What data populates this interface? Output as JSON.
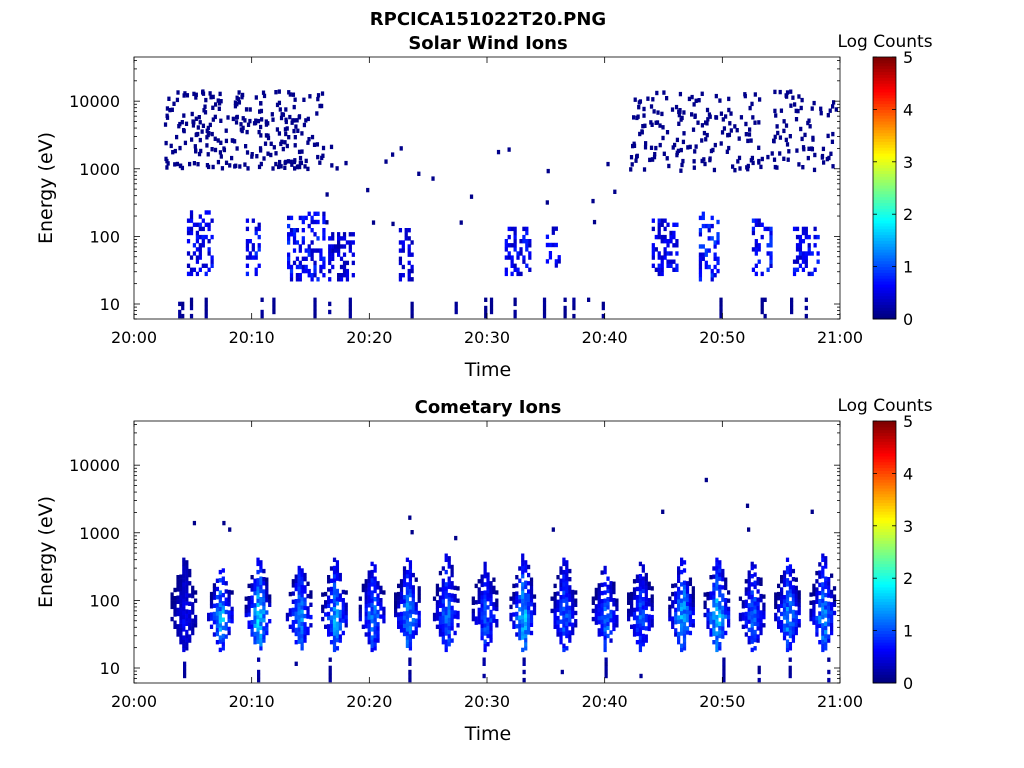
{
  "figure_title": "RPCICA151022T20.PNG",
  "chart_data": [
    {
      "type": "heatmap",
      "title": "Solar Wind Ions",
      "xlabel": "Time",
      "ylabel": "Energy (eV)",
      "x_ticks": [
        "20:00",
        "20:10",
        "20:20",
        "20:30",
        "20:40",
        "20:50",
        "21:00"
      ],
      "x_range": [
        "20:00",
        "21:00"
      ],
      "y_ticks": [
        "10",
        "100",
        "1000",
        "10000"
      ],
      "y_scale": "log",
      "y_range": [
        6,
        45000
      ],
      "colorbar": {
        "label": "Log Counts",
        "ticks": [
          "0",
          "1",
          "2",
          "3",
          "4",
          "5"
        ],
        "range": [
          0,
          5
        ],
        "colormap": "jet"
      },
      "scattered_energy_range": [
        1000,
        15000
      ],
      "clusters": [
        {
          "start": 4.5,
          "end": 6.5,
          "emin": 30,
          "emax": 250,
          "peak": 0.8
        },
        {
          "start": 9.5,
          "end": 10.5,
          "emin": 30,
          "emax": 200,
          "peak": 0.9
        },
        {
          "start": 13.0,
          "end": 16.0,
          "emin": 25,
          "emax": 250,
          "peak": 0.9
        },
        {
          "start": 16.5,
          "end": 18.5,
          "emin": 25,
          "emax": 120,
          "peak": 0.6
        },
        {
          "start": 22.5,
          "end": 23.5,
          "emin": 25,
          "emax": 150,
          "peak": 0.6
        },
        {
          "start": 31.5,
          "end": 33.5,
          "emin": 30,
          "emax": 150,
          "peak": 0.8
        },
        {
          "start": 35.0,
          "end": 36.0,
          "emin": 40,
          "emax": 150,
          "peak": 0.7
        },
        {
          "start": 44.0,
          "end": 46.0,
          "emin": 30,
          "emax": 200,
          "peak": 0.8
        },
        {
          "start": 48.0,
          "end": 49.5,
          "emin": 25,
          "emax": 250,
          "peak": 1.0
        },
        {
          "start": 52.5,
          "end": 54.0,
          "emin": 30,
          "emax": 200,
          "peak": 0.9
        },
        {
          "start": 56.0,
          "end": 58.0,
          "emin": 30,
          "emax": 150,
          "peak": 0.8
        }
      ]
    },
    {
      "type": "heatmap",
      "title": "Cometary Ions",
      "xlabel": "Time",
      "ylabel": "Energy (eV)",
      "x_ticks": [
        "20:00",
        "20:10",
        "20:20",
        "20:30",
        "20:40",
        "20:50",
        "21:00"
      ],
      "x_range": [
        "20:00",
        "21:00"
      ],
      "y_ticks": [
        "10",
        "100",
        "1000",
        "10000"
      ],
      "y_scale": "log",
      "y_range": [
        6,
        45000
      ],
      "colorbar": {
        "label": "Log Counts",
        "ticks": [
          "0",
          "1",
          "2",
          "3",
          "4",
          "5"
        ],
        "range": [
          0,
          5
        ],
        "colormap": "jet"
      },
      "bursts": [
        {
          "center": 4.2,
          "peak": 0.8,
          "emax": 500
        },
        {
          "center": 7.3,
          "peak": 2.0,
          "emax": 350
        },
        {
          "center": 10.5,
          "peak": 2.2,
          "emax": 500
        },
        {
          "center": 14.0,
          "peak": 1.8,
          "emax": 400
        },
        {
          "center": 17.0,
          "peak": 1.8,
          "emax": 500
        },
        {
          "center": 20.2,
          "peak": 1.6,
          "emax": 450
        },
        {
          "center": 23.2,
          "peak": 1.8,
          "emax": 500
        },
        {
          "center": 26.5,
          "peak": 1.6,
          "emax": 600
        },
        {
          "center": 29.8,
          "peak": 1.4,
          "emax": 450
        },
        {
          "center": 33.0,
          "peak": 2.0,
          "emax": 600
        },
        {
          "center": 36.5,
          "peak": 1.5,
          "emax": 500
        },
        {
          "center": 40.0,
          "peak": 1.6,
          "emax": 400
        },
        {
          "center": 43.0,
          "peak": 1.4,
          "emax": 450
        },
        {
          "center": 46.5,
          "peak": 2.0,
          "emax": 500
        },
        {
          "center": 49.5,
          "peak": 2.2,
          "emax": 500
        },
        {
          "center": 52.5,
          "peak": 1.5,
          "emax": 450
        },
        {
          "center": 55.5,
          "peak": 1.8,
          "emax": 500
        },
        {
          "center": 58.5,
          "peak": 1.8,
          "emax": 600
        }
      ],
      "outliers": [
        {
          "t": 5.0,
          "e": 1500
        },
        {
          "t": 7.5,
          "e": 1500
        },
        {
          "t": 8.0,
          "e": 1200
        },
        {
          "t": 23.3,
          "e": 1800
        },
        {
          "t": 23.5,
          "e": 1100
        },
        {
          "t": 27.2,
          "e": 900
        },
        {
          "t": 35.5,
          "e": 1200
        },
        {
          "t": 44.8,
          "e": 2200
        },
        {
          "t": 48.5,
          "e": 6500
        },
        {
          "t": 52.0,
          "e": 2700
        },
        {
          "t": 52.1,
          "e": 1200
        },
        {
          "t": 57.5,
          "e": 2200
        }
      ]
    }
  ]
}
